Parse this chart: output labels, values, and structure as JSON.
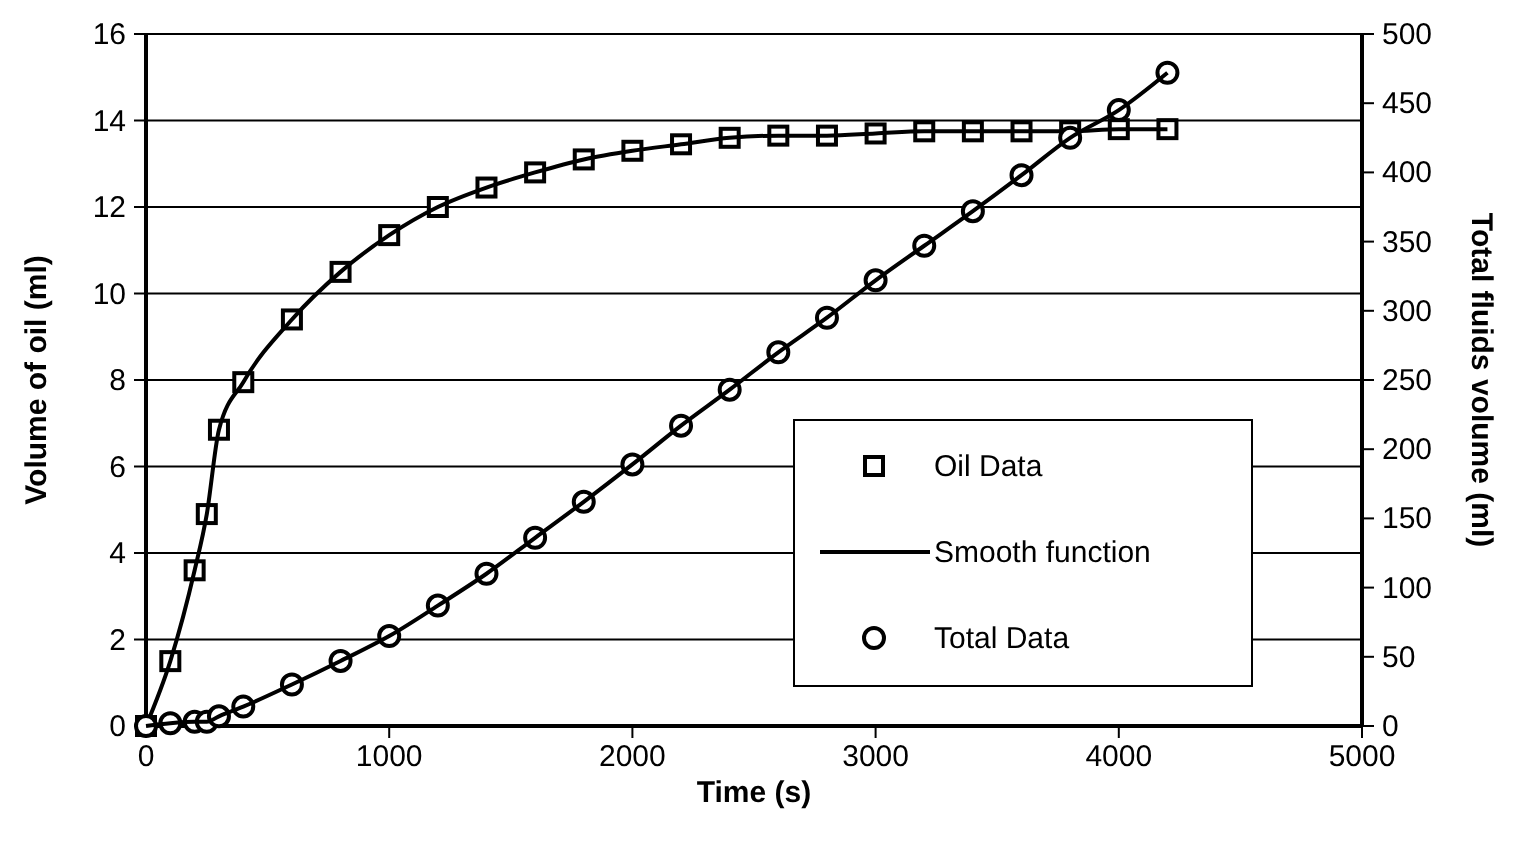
{
  "chart_data": {
    "type": "scatter",
    "xlabel": "Time (s)",
    "ylabel": "Volume of oil (ml)",
    "y2label": "Total fluids volume (ml)",
    "xlim": [
      0,
      5000
    ],
    "xticks": [
      0,
      1000,
      2000,
      3000,
      4000,
      5000
    ],
    "ylim": [
      0,
      16
    ],
    "yticks": [
      0,
      2,
      4,
      6,
      8,
      10,
      12,
      14,
      16
    ],
    "y2lim": [
      0,
      500
    ],
    "y2ticks": [
      0,
      50,
      100,
      150,
      200,
      250,
      300,
      350,
      400,
      450,
      500
    ],
    "grid": "y",
    "legend": "bottom right",
    "series": [
      {
        "name": "Oil Data",
        "type": "scatter",
        "marker": "square",
        "color": "#000000",
        "x": [
          0,
          100,
          200,
          250,
          300,
          400,
          600,
          800,
          1000,
          1200,
          1400,
          1600,
          1800,
          2000,
          2200,
          2400,
          2600,
          2800,
          3000,
          3200,
          3400,
          3600,
          3800,
          4000,
          4200
        ],
        "values": [
          0,
          1.5,
          3.6,
          4.9,
          6.85,
          7.95,
          9.4,
          10.5,
          11.35,
          12.0,
          12.45,
          12.8,
          13.1,
          13.3,
          13.45,
          13.6,
          13.65,
          13.65,
          13.7,
          13.75,
          13.75,
          13.75,
          13.75,
          13.8,
          13.8
        ]
      },
      {
        "name": "Smooth function",
        "type": "line",
        "marker": "none",
        "line_style": "solid",
        "color": "#000000",
        "x": [
          0,
          100,
          200,
          250,
          300,
          400,
          600,
          800,
          1000,
          1200,
          1400,
          1600,
          1800,
          2000,
          2200,
          2400,
          2600,
          2800,
          3000,
          3200,
          3400,
          3600,
          3800,
          4000,
          4200
        ],
        "values": [
          0,
          1.5,
          3.6,
          4.9,
          6.85,
          7.95,
          9.4,
          10.5,
          11.35,
          12.0,
          12.45,
          12.8,
          13.1,
          13.3,
          13.45,
          13.6,
          13.65,
          13.65,
          13.7,
          13.75,
          13.75,
          13.75,
          13.75,
          13.8,
          13.8
        ]
      },
      {
        "name": "Total Data",
        "type": "scatter",
        "marker": "circle",
        "axis": "y2",
        "color": "#000000",
        "x": [
          0,
          100,
          200,
          250,
          300,
          400,
          600,
          800,
          1000,
          1200,
          1400,
          1600,
          1800,
          2000,
          2200,
          2400,
          2600,
          2800,
          3000,
          3200,
          3400,
          3600,
          3800,
          4000,
          4200
        ],
        "values": [
          0,
          2,
          3,
          3,
          7,
          14,
          30,
          47,
          65,
          87,
          110,
          136,
          162,
          189,
          217,
          243,
          270,
          295,
          322,
          347,
          372,
          398,
          425,
          445,
          472
        ]
      },
      {
        "type": "line",
        "marker": "none",
        "line_style": "solid",
        "axis": "y2",
        "color": "#000000",
        "x": [
          0,
          100,
          200,
          250,
          300,
          400,
          600,
          800,
          1000,
          1200,
          1400,
          1600,
          1800,
          2000,
          2200,
          2400,
          2600,
          2800,
          3000,
          3200,
          3400,
          3600,
          3800,
          4000,
          4200
        ],
        "values": [
          0,
          2,
          3,
          3,
          7,
          14,
          30,
          47,
          65,
          87,
          110,
          136,
          162,
          189,
          217,
          243,
          270,
          295,
          322,
          347,
          372,
          398,
          425,
          445,
          472
        ]
      }
    ]
  }
}
